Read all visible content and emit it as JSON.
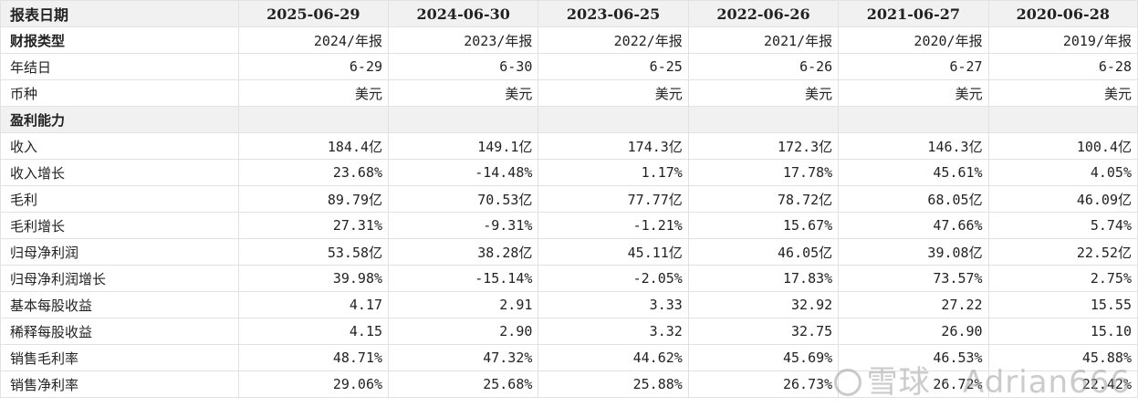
{
  "header": {
    "label": "报表日期",
    "periods": [
      "2025-06-29",
      "2024-06-30",
      "2023-06-25",
      "2022-06-26",
      "2021-06-27",
      "2020-06-28"
    ]
  },
  "meta_rows": [
    {
      "label": "财报类型",
      "values": [
        "2024/年报",
        "2023/年报",
        "2022/年报",
        "2021/年报",
        "2020/年报",
        "2019/年报"
      ]
    },
    {
      "label": "年结日",
      "values": [
        "6-29",
        "6-30",
        "6-25",
        "6-26",
        "6-27",
        "6-28"
      ]
    },
    {
      "label": "币种",
      "values": [
        "美元",
        "美元",
        "美元",
        "美元",
        "美元",
        "美元"
      ]
    }
  ],
  "section": {
    "label": "盈利能力"
  },
  "rows": [
    {
      "label": "收入",
      "values": [
        "184.4亿",
        "149.1亿",
        "174.3亿",
        "172.3亿",
        "146.3亿",
        "100.4亿"
      ]
    },
    {
      "label": "收入增长",
      "values": [
        "23.68%",
        "-14.48%",
        "1.17%",
        "17.78%",
        "45.61%",
        "4.05%"
      ]
    },
    {
      "label": "毛利",
      "values": [
        "89.79亿",
        "70.53亿",
        "77.77亿",
        "78.72亿",
        "68.05亿",
        "46.09亿"
      ]
    },
    {
      "label": "毛利增长",
      "values": [
        "27.31%",
        "-9.31%",
        "-1.21%",
        "15.67%",
        "47.66%",
        "5.74%"
      ]
    },
    {
      "label": "归母净利润",
      "values": [
        "53.58亿",
        "38.28亿",
        "45.11亿",
        "46.05亿",
        "39.08亿",
        "22.52亿"
      ]
    },
    {
      "label": "归母净利润增长",
      "values": [
        "39.98%",
        "-15.14%",
        "-2.05%",
        "17.83%",
        "73.57%",
        "2.75%"
      ]
    },
    {
      "label": "基本每股收益",
      "values": [
        "4.17",
        "2.91",
        "3.33",
        "32.92",
        "27.22",
        "15.55"
      ]
    },
    {
      "label": "稀释每股收益",
      "values": [
        "4.15",
        "2.90",
        "3.32",
        "32.75",
        "26.90",
        "15.10"
      ]
    },
    {
      "label": "销售毛利率",
      "values": [
        "48.71%",
        "47.32%",
        "44.62%",
        "45.69%",
        "46.53%",
        "45.88%"
      ]
    },
    {
      "label": "销售净利率",
      "values": [
        "29.06%",
        "25.68%",
        "25.88%",
        "26.73%",
        "26.72%",
        "22.42%"
      ]
    }
  ],
  "watermark": {
    "text": "雪球 · Adrian666"
  }
}
